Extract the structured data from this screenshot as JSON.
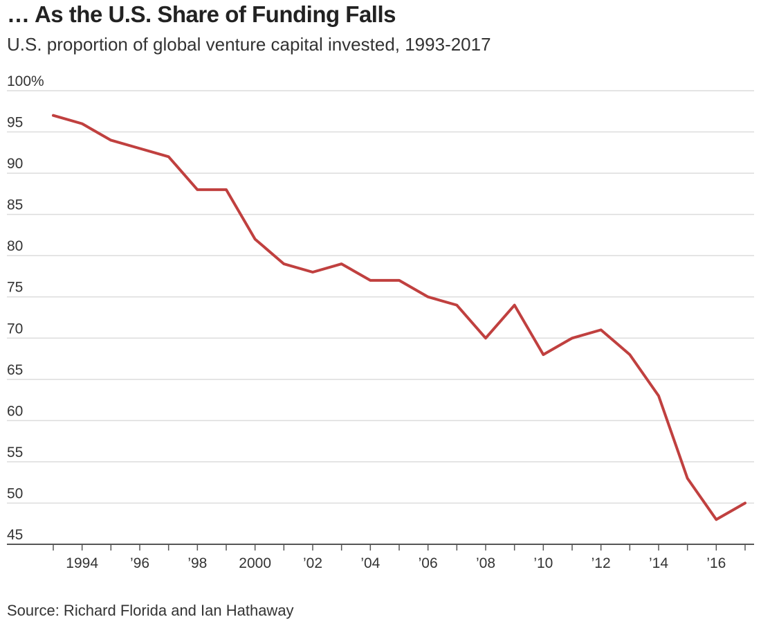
{
  "chart_data": {
    "type": "line",
    "title": "… As the U.S. Share of Funding Falls",
    "subtitle": "U.S. proportion of global venture capital invested, 1993-2017",
    "source": "Source: Richard Florida and Ian Hathaway",
    "xlabel": "",
    "ylabel": "",
    "xlim": [
      1993,
      2017
    ],
    "ylim": [
      45,
      100
    ],
    "grid": true,
    "y_ticks": [
      100,
      95,
      90,
      85,
      80,
      75,
      70,
      65,
      60,
      55,
      50,
      45
    ],
    "y_tick_labels": [
      "100%",
      "95",
      "90",
      "85",
      "80",
      "75",
      "70",
      "65",
      "60",
      "55",
      "50",
      "45"
    ],
    "x_ticks": [
      1994,
      1996,
      1998,
      2000,
      2002,
      2004,
      2006,
      2008,
      2010,
      2012,
      2014,
      2016
    ],
    "x_tick_labels": [
      "1994",
      "’96",
      "’98",
      "2000",
      "’02",
      "’04",
      "’06",
      "’08",
      "’10",
      "’12",
      "’14",
      "’16"
    ],
    "series": [
      {
        "name": "U.S. share of global venture capital",
        "color": "#c0403f",
        "x": [
          1993,
          1994,
          1995,
          1996,
          1997,
          1998,
          1999,
          2000,
          2001,
          2002,
          2003,
          2004,
          2005,
          2006,
          2007,
          2008,
          2009,
          2010,
          2011,
          2012,
          2013,
          2014,
          2015,
          2016,
          2017
        ],
        "values": [
          97,
          96,
          94,
          93,
          92,
          88,
          88,
          82,
          79,
          78,
          79,
          77,
          77,
          75,
          74,
          70,
          74,
          68,
          70,
          71,
          68,
          63,
          53,
          48,
          50
        ]
      }
    ]
  }
}
